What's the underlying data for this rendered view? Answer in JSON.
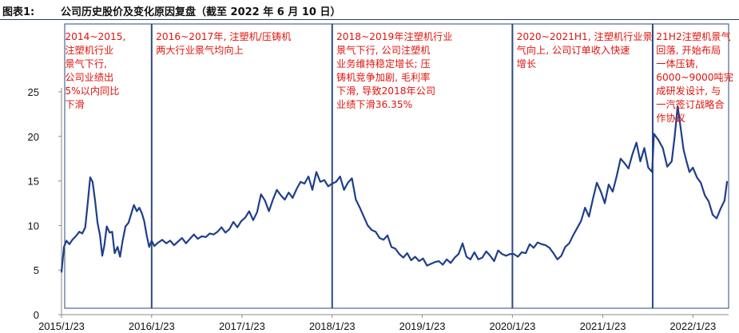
{
  "header": {
    "figure_label": "图表1:",
    "title": "公司历史股价及变化原因复盘（截至 2022 年 6 月 10 日）"
  },
  "chart_data": {
    "type": "line",
    "title": "公司历史股价及变化原因复盘（截至 2022 年 6 月 10 日）",
    "xlabel": "",
    "ylabel": "",
    "ylim": [
      0,
      25
    ],
    "yticks": [
      0,
      5,
      10,
      15,
      20,
      25
    ],
    "xticks": [
      "2015/1/23",
      "2016/1/23",
      "2017/1/23",
      "2018/1/23",
      "2019/1/23",
      "2020/1/23",
      "2021/1/23",
      "2022/1/23"
    ],
    "x_domain": [
      "2015/1/23",
      "2022/6/10"
    ],
    "grid": false,
    "line_color": "#1f3f8a",
    "annotation_color": "#e0140c",
    "divider_color": "#2a4a82",
    "series": [
      {
        "points": [
          [
            "2015/1/23",
            4.8
          ],
          [
            "2015/2/2",
            7.6
          ],
          [
            "2015/2/12",
            8.3
          ],
          [
            "2015/2/24",
            7.9
          ],
          [
            "2015/3/8",
            8.4
          ],
          [
            "2015/3/22",
            8.8
          ],
          [
            "2015/4/5",
            9.3
          ],
          [
            "2015/4/17",
            9.1
          ],
          [
            "2015/4/29",
            9.8
          ],
          [
            "2015/5/9",
            12.5
          ],
          [
            "2015/5/19",
            15.4
          ],
          [
            "2015/5/29",
            14.9
          ],
          [
            "2015/6/8",
            12.8
          ],
          [
            "2015/6/18",
            10.3
          ],
          [
            "2015/6/28",
            8.9
          ],
          [
            "2015/7/7",
            6.6
          ],
          [
            "2015/7/15",
            7.7
          ],
          [
            "2015/7/25",
            9.9
          ],
          [
            "2015/8/6",
            9.2
          ],
          [
            "2015/8/16",
            9.3
          ],
          [
            "2015/8/26",
            6.9
          ],
          [
            "2015/9/7",
            7.6
          ],
          [
            "2015/9/17",
            6.5
          ],
          [
            "2015/9/27",
            8.2
          ],
          [
            "2015/10/9",
            9.9
          ],
          [
            "2015/10/21",
            10.3
          ],
          [
            "2015/10/31",
            11.2
          ],
          [
            "2015/11/12",
            12.3
          ],
          [
            "2015/11/24",
            11.6
          ],
          [
            "2015/12/4",
            12.0
          ],
          [
            "2015/12/14",
            11.4
          ],
          [
            "2015/12/24",
            10.5
          ],
          [
            "2016/1/3",
            8.9
          ],
          [
            "2016/1/13",
            7.6
          ],
          [
            "2016/1/23",
            8.3
          ],
          [
            "2016/2/3",
            7.7
          ],
          [
            "2016/2/19",
            8.1
          ],
          [
            "2016/3/6",
            8.4
          ],
          [
            "2016/3/22",
            8.0
          ],
          [
            "2016/4/7",
            8.3
          ],
          [
            "2016/4/23",
            7.8
          ],
          [
            "2016/5/9",
            8.2
          ],
          [
            "2016/5/25",
            8.6
          ],
          [
            "2016/6/10",
            8.0
          ],
          [
            "2016/6/26",
            8.5
          ],
          [
            "2016/7/12",
            9.0
          ],
          [
            "2016/7/28",
            8.5
          ],
          [
            "2016/8/13",
            8.8
          ],
          [
            "2016/8/29",
            8.7
          ],
          [
            "2016/9/14",
            9.1
          ],
          [
            "2016/9/30",
            9.0
          ],
          [
            "2016/10/16",
            9.3
          ],
          [
            "2016/11/1",
            9.8
          ],
          [
            "2016/11/17",
            9.2
          ],
          [
            "2016/12/3",
            9.6
          ],
          [
            "2016/12/19",
            10.4
          ],
          [
            "2017/1/4",
            9.8
          ],
          [
            "2017/1/20",
            10.5
          ],
          [
            "2017/2/5",
            10.9
          ],
          [
            "2017/2/21",
            11.6
          ],
          [
            "2017/3/9",
            10.6
          ],
          [
            "2017/3/25",
            11.5
          ],
          [
            "2017/4/10",
            13.5
          ],
          [
            "2017/4/26",
            12.8
          ],
          [
            "2017/5/12",
            11.6
          ],
          [
            "2017/5/28",
            12.9
          ],
          [
            "2017/6/13",
            14.0
          ],
          [
            "2017/6/29",
            13.4
          ],
          [
            "2017/7/15",
            12.9
          ],
          [
            "2017/7/31",
            13.7
          ],
          [
            "2017/8/16",
            13.1
          ],
          [
            "2017/9/1",
            14.1
          ],
          [
            "2017/9/17",
            14.9
          ],
          [
            "2017/10/3",
            14.7
          ],
          [
            "2017/10/19",
            15.5
          ],
          [
            "2017/11/4",
            14.0
          ],
          [
            "2017/11/20",
            16.0
          ],
          [
            "2017/12/6",
            14.9
          ],
          [
            "2017/12/22",
            15.1
          ],
          [
            "2018/1/7",
            14.4
          ],
          [
            "2018/1/23",
            14.7
          ],
          [
            "2018/2/8",
            14.9
          ],
          [
            "2018/2/24",
            15.5
          ],
          [
            "2018/3/12",
            14.0
          ],
          [
            "2018/3/28",
            14.8
          ],
          [
            "2018/4/13",
            15.3
          ],
          [
            "2018/4/29",
            12.9
          ],
          [
            "2018/5/15",
            12.0
          ],
          [
            "2018/5/31",
            11.0
          ],
          [
            "2018/6/16",
            10.0
          ],
          [
            "2018/7/2",
            9.5
          ],
          [
            "2018/7/18",
            9.3
          ],
          [
            "2018/8/3",
            8.6
          ],
          [
            "2018/8/19",
            8.4
          ],
          [
            "2018/9/4",
            8.9
          ],
          [
            "2018/9/20",
            7.6
          ],
          [
            "2018/10/6",
            7.4
          ],
          [
            "2018/10/22",
            6.8
          ],
          [
            "2018/11/7",
            6.4
          ],
          [
            "2018/11/23",
            6.9
          ],
          [
            "2018/12/9",
            6.1
          ],
          [
            "2018/12/25",
            6.5
          ],
          [
            "2019/1/10",
            6.0
          ],
          [
            "2019/1/26",
            6.3
          ],
          [
            "2019/2/11",
            5.5
          ],
          [
            "2019/2/27",
            5.7
          ],
          [
            "2019/3/15",
            5.9
          ],
          [
            "2019/3/31",
            6.0
          ],
          [
            "2019/4/16",
            5.6
          ],
          [
            "2019/5/2",
            6.2
          ],
          [
            "2019/5/18",
            5.8
          ],
          [
            "2019/6/3",
            6.4
          ],
          [
            "2019/6/19",
            6.8
          ],
          [
            "2019/7/5",
            8.0
          ],
          [
            "2019/7/21",
            6.5
          ],
          [
            "2019/8/6",
            6.2
          ],
          [
            "2019/8/22",
            7.0
          ],
          [
            "2019/9/7",
            6.2
          ],
          [
            "2019/9/23",
            6.4
          ],
          [
            "2019/10/9",
            7.1
          ],
          [
            "2019/10/25",
            6.6
          ],
          [
            "2019/11/10",
            6.0
          ],
          [
            "2019/11/26",
            7.2
          ],
          [
            "2019/12/12",
            6.8
          ],
          [
            "2019/12/28",
            6.6
          ],
          [
            "2020/1/13",
            6.8
          ],
          [
            "2020/1/29",
            6.8
          ],
          [
            "2020/2/14",
            6.5
          ],
          [
            "2020/3/1",
            7.0
          ],
          [
            "2020/3/17",
            6.9
          ],
          [
            "2020/4/2",
            7.9
          ],
          [
            "2020/4/18",
            7.5
          ],
          [
            "2020/5/4",
            8.1
          ],
          [
            "2020/5/20",
            7.9
          ],
          [
            "2020/6/5",
            7.8
          ],
          [
            "2020/6/21",
            7.5
          ],
          [
            "2020/7/7",
            6.9
          ],
          [
            "2020/7/23",
            6.2
          ],
          [
            "2020/8/8",
            6.6
          ],
          [
            "2020/8/24",
            7.6
          ],
          [
            "2020/9/9",
            8.0
          ],
          [
            "2020/9/25",
            8.9
          ],
          [
            "2020/10/11",
            9.7
          ],
          [
            "2020/10/27",
            10.5
          ],
          [
            "2020/11/12",
            12.0
          ],
          [
            "2020/11/28",
            11.0
          ],
          [
            "2020/12/14",
            13.0
          ],
          [
            "2020/12/30",
            14.8
          ],
          [
            "2021/1/15",
            13.8
          ],
          [
            "2021/1/31",
            12.5
          ],
          [
            "2021/2/16",
            14.6
          ],
          [
            "2021/3/4",
            13.8
          ],
          [
            "2021/3/20",
            15.5
          ],
          [
            "2021/4/5",
            17.5
          ],
          [
            "2021/4/21",
            17.0
          ],
          [
            "2021/5/7",
            16.4
          ],
          [
            "2021/5/23",
            18.0
          ],
          [
            "2021/6/8",
            19.3
          ],
          [
            "2021/6/24",
            17.2
          ],
          [
            "2021/7/10",
            18.7
          ],
          [
            "2021/7/26",
            16.5
          ],
          [
            "2021/8/11",
            16.0
          ],
          [
            "2021/8/18",
            20.3
          ],
          [
            "2021/9/5",
            19.6
          ],
          [
            "2021/9/23",
            18.7
          ],
          [
            "2021/10/11",
            16.6
          ],
          [
            "2021/10/29",
            17.2
          ],
          [
            "2021/11/10",
            20.0
          ],
          [
            "2021/11/22",
            23.4
          ],
          [
            "2021/12/4",
            21.0
          ],
          [
            "2021/12/16",
            18.5
          ],
          [
            "2021/12/28",
            17.2
          ],
          [
            "2022/1/9",
            16.0
          ],
          [
            "2022/1/23",
            16.5
          ],
          [
            "2022/2/8",
            15.4
          ],
          [
            "2022/2/24",
            14.8
          ],
          [
            "2022/3/12",
            13.4
          ],
          [
            "2022/3/28",
            12.7
          ],
          [
            "2022/4/13",
            11.2
          ],
          [
            "2022/4/29",
            10.8
          ],
          [
            "2022/5/15",
            11.9
          ],
          [
            "2022/5/31",
            12.8
          ],
          [
            "2022/6/10",
            14.9
          ]
        ]
      }
    ],
    "dividers": [
      "2016/1/23",
      "2018/1/23",
      "2020/1/23",
      "2021/8/13"
    ],
    "annotations": [
      {
        "x": "2015/2/6",
        "lines": [
          "2014~2015,",
          "注塑机行业",
          "景气下行,",
          "公司业绩出",
          "5%以内同比",
          "下滑"
        ]
      },
      {
        "x": "2016/2/9",
        "lines": [
          "2016~2017年, 注塑机/压铸机",
          "两大行业景气均向上"
        ]
      },
      {
        "x": "2018/2/9",
        "lines": [
          "2018~2019年注塑机行业",
          "景气下行, 公司注塑机",
          "业务维持稳定增长; 压",
          "铸机竞争加剧, 毛利率",
          "下滑, 导致2018年公司",
          "业绩下滑36.35%"
        ]
      },
      {
        "x": "2020/2/9",
        "lines": [
          "2020~2021H1, 注塑机行业景",
          "气向上, 公司订单收入快速",
          "增长"
        ]
      },
      {
        "x": "2021/8/27",
        "lines": [
          "21H2注塑机景气",
          "回落, 开始布局",
          "一体压铸,",
          "6000~9000吨完",
          "成研发设计, 与",
          "一汽签订战略合",
          "作协议"
        ]
      }
    ]
  }
}
